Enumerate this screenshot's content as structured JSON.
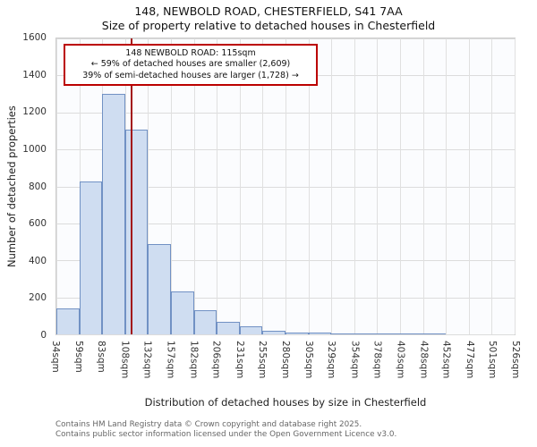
{
  "title": "148, NEWBOLD ROAD, CHESTERFIELD, S41 7AA",
  "subtitle": "Size of property relative to detached houses in Chesterfield",
  "annotation": {
    "line1": "148 NEWBOLD ROAD: 115sqm",
    "line2": "← 59% of detached houses are smaller (2,609)",
    "line3": "39% of semi-detached houses are larger (1,728) →",
    "border_color": "#bb0000"
  },
  "chart_data": {
    "type": "bar",
    "title": "148, NEWBOLD ROAD, CHESTERFIELD, S41 7AA — Size of property relative to detached houses in Chesterfield",
    "xlabel": "Distribution of detached houses by size in Chesterfield",
    "ylabel": "Number of detached properties",
    "ylim": [
      0,
      1600
    ],
    "yticks": [
      0,
      200,
      400,
      600,
      800,
      1000,
      1200,
      1400,
      1600
    ],
    "bin_edges_sqm": [
      34,
      59,
      83,
      108,
      132,
      157,
      182,
      206,
      231,
      255,
      280,
      305,
      329,
      354,
      378,
      403,
      428,
      452,
      477,
      501,
      526
    ],
    "x_tick_labels": [
      "34sqm",
      "59sqm",
      "83sqm",
      "108sqm",
      "132sqm",
      "157sqm",
      "182sqm",
      "206sqm",
      "231sqm",
      "255sqm",
      "280sqm",
      "305sqm",
      "329sqm",
      "354sqm",
      "378sqm",
      "403sqm",
      "428sqm",
      "452sqm",
      "477sqm",
      "501sqm",
      "526sqm"
    ],
    "values": [
      140,
      825,
      1300,
      1105,
      490,
      230,
      130,
      70,
      45,
      20,
      12,
      10,
      6,
      4,
      3,
      3,
      2,
      0,
      0,
      0
    ],
    "grid": true,
    "legend": null,
    "bar_fill": "#cfddf1",
    "bar_edge": "#7191c4",
    "marker": {
      "value_sqm": 115,
      "color": "#a31515"
    }
  },
  "footer": {
    "line1": "Contains HM Land Registry data © Crown copyright and database right 2025.",
    "line2": "Contains public sector information licensed under the Open Government Licence v3.0."
  }
}
